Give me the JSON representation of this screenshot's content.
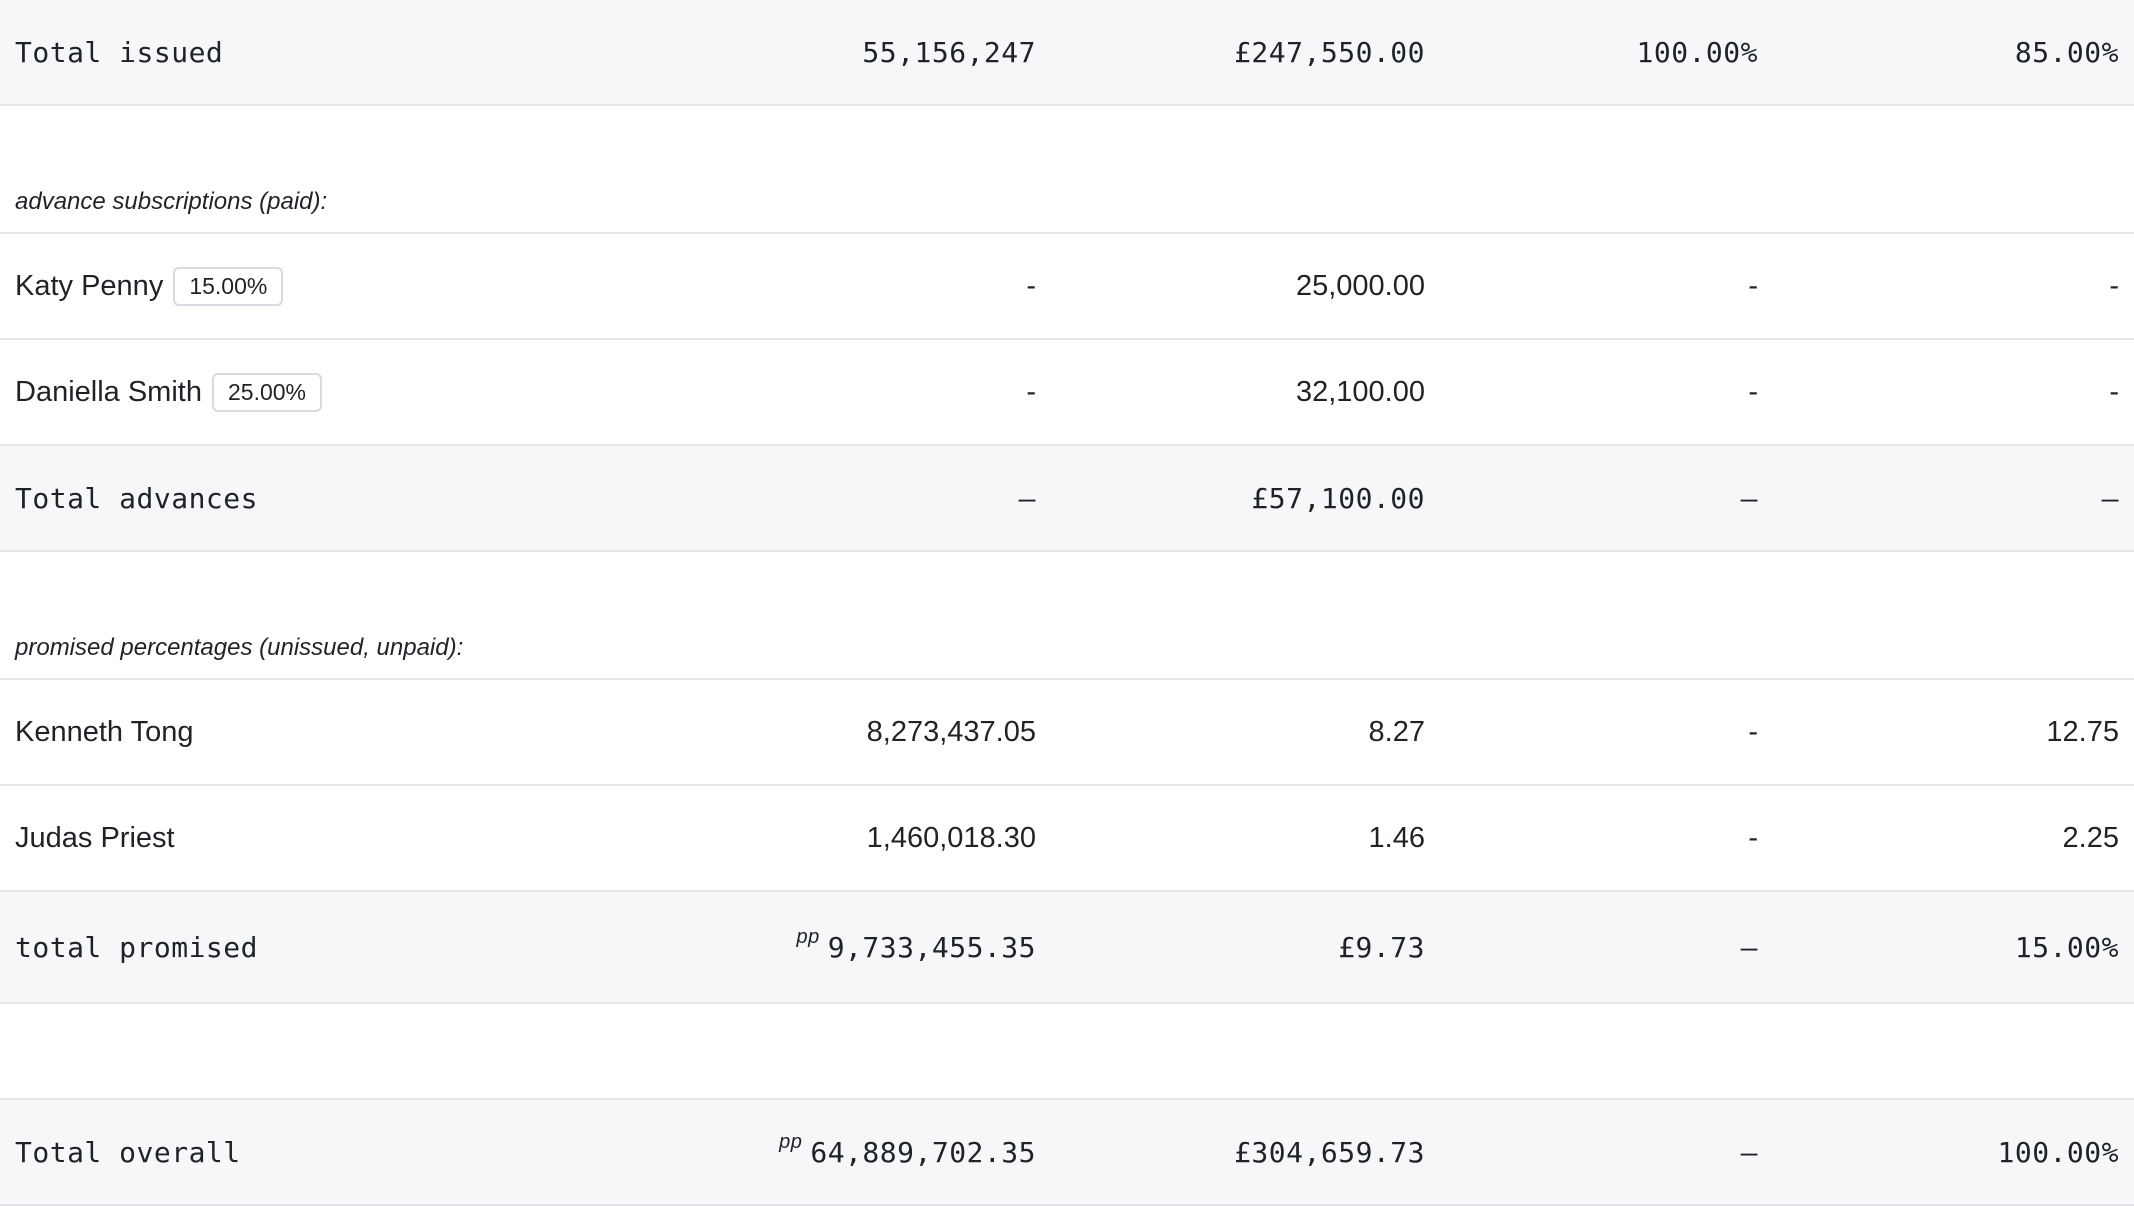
{
  "issued_total": {
    "label": "Total issued",
    "shares": "55,156,247",
    "amount": "£247,550.00",
    "pct_issued": "100.00%",
    "pct_overall": "85.00%"
  },
  "advances": {
    "section_label": "advance subscriptions (paid):",
    "rows": [
      {
        "name": "Katy Penny",
        "badge": "15.00%",
        "shares": "-",
        "amount": "25,000.00",
        "pct_issued": "-",
        "pct_overall": "-"
      },
      {
        "name": "Daniella Smith",
        "badge": "25.00%",
        "shares": "-",
        "amount": "32,100.00",
        "pct_issued": "-",
        "pct_overall": "-"
      }
    ],
    "total": {
      "label": "Total advances",
      "shares": "–",
      "amount": "£57,100.00",
      "pct_issued": "–",
      "pct_overall": "–"
    }
  },
  "promised": {
    "section_label": "promised percentages (unissued, unpaid):",
    "rows": [
      {
        "name": "Kenneth Tong",
        "shares": "8,273,437.05",
        "amount": "8.27",
        "pct_issued": "-",
        "pct_overall": "12.75"
      },
      {
        "name": "Judas Priest",
        "shares": "1,460,018.30",
        "amount": "1.46",
        "pct_issued": "-",
        "pct_overall": "2.25"
      }
    ],
    "total": {
      "label": "total promised",
      "shares_prefix": "pp",
      "shares": "9,733,455.35",
      "amount": "£9.73",
      "pct_issued": "–",
      "pct_overall": "15.00%"
    }
  },
  "overall_total": {
    "label": "Total overall",
    "shares_prefix": "pp",
    "shares": "64,889,702.35",
    "amount": "£304,659.73",
    "pct_issued": "–",
    "pct_overall": "100.00%"
  }
}
